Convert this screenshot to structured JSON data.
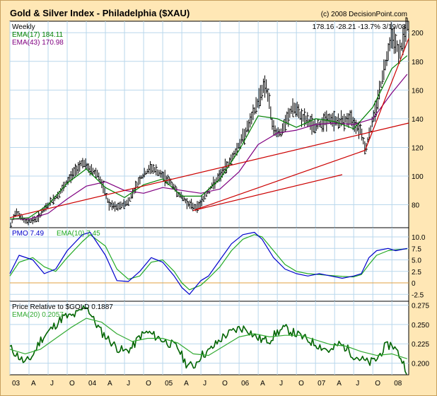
{
  "title": "Gold & Silver Index - Philadelphia ($XAU)",
  "copyright": "(c) 2008 DecisionPoint.com",
  "price_panel": {
    "period_label": "Weekly",
    "ema17_label": "EMA(17) 184.11",
    "ema43_label": "EMA(43) 170.98",
    "stats": "178.16  -28.21  -13.7%  3/19/08",
    "y_ticks": [
      "200",
      "180",
      "160",
      "140",
      "120",
      "100",
      "80"
    ]
  },
  "pmo_panel": {
    "pmo_label": "PMO  7.49",
    "ema_label": "EMA(10)  7.45",
    "y_ticks": [
      "10.0",
      "7.5",
      "5.0",
      "2.5",
      "0",
      "-2.5"
    ]
  },
  "rel_panel": {
    "rel_label": "Price Relative to $GOLD  0.1887",
    "ema_label": "EMA(20) 0.2057",
    "y_ticks": [
      "0.275",
      "0.250",
      "0.225",
      "0.200"
    ]
  },
  "x_ticks": [
    "03",
    "A",
    "J",
    "O",
    "04",
    "A",
    "J",
    "O",
    "05",
    "A",
    "J",
    "O",
    "06",
    "A",
    "J",
    "O",
    "07",
    "A",
    "J",
    "O",
    "08"
  ],
  "colors": {
    "background": "#ffe7b5",
    "grid": "#b9d7ec",
    "price": "#000000",
    "ema_short": "#008000",
    "ema_long": "#800080",
    "trendline": "#cc0000",
    "pmo": "#0000cc",
    "pmo_signal": "#22aa22",
    "zero_line": "#e0a040",
    "relative": "#006400",
    "relative_ema": "#33aa33"
  },
  "chart_data": [
    {
      "type": "bar",
      "title": "Gold & Silver Index - Philadelphia ($XAU)",
      "period": "Weekly",
      "x_range": [
        2003.0,
        2008.22
      ],
      "ylim": [
        64,
        208
      ],
      "series": [
        {
          "name": "EMA(17)",
          "x": [
            2003.0,
            2003.25,
            2003.5,
            2003.75,
            2004.0,
            2004.25,
            2004.5,
            2004.75,
            2005.0,
            2005.25,
            2005.5,
            2005.75,
            2006.0,
            2006.25,
            2006.5,
            2006.75,
            2007.0,
            2007.25,
            2007.5,
            2007.75,
            2008.0,
            2008.2
          ],
          "values": [
            70,
            71,
            80,
            95,
            105,
            92,
            85,
            94,
            98,
            86,
            86,
            98,
            118,
            142,
            140,
            134,
            140,
            138,
            133,
            148,
            175,
            184
          ]
        },
        {
          "name": "EMA(43)",
          "x": [
            2003.0,
            2003.25,
            2003.5,
            2003.75,
            2004.0,
            2004.25,
            2004.5,
            2004.75,
            2005.0,
            2005.25,
            2005.5,
            2005.75,
            2006.0,
            2006.25,
            2006.5,
            2006.75,
            2007.0,
            2007.25,
            2007.5,
            2007.75,
            2008.0,
            2008.2
          ],
          "values": [
            70,
            70,
            74,
            84,
            93,
            96,
            90,
            88,
            92,
            90,
            88,
            91,
            103,
            122,
            130,
            132,
            136,
            137,
            136,
            140,
            158,
            171
          ]
        }
      ],
      "price_anchors": {
        "x": [
          2003.0,
          2003.08,
          2003.2,
          2003.35,
          2003.5,
          2003.65,
          2003.8,
          2003.95,
          2004.05,
          2004.15,
          2004.3,
          2004.4,
          2004.55,
          2004.7,
          2004.85,
          2004.95,
          2005.1,
          2005.2,
          2005.35,
          2005.45,
          2005.6,
          2005.75,
          2005.9,
          2006.0,
          2006.15,
          2006.3,
          2006.35,
          2006.45,
          2006.55,
          2006.7,
          2006.85,
          2007.0,
          2007.15,
          2007.3,
          2007.45,
          2007.6,
          2007.65,
          2007.8,
          2007.9,
          2008.0,
          2008.1,
          2008.2
        ],
        "values": [
          64,
          76,
          68,
          70,
          80,
          88,
          100,
          110,
          104,
          102,
          80,
          78,
          82,
          98,
          106,
          102,
          96,
          88,
          80,
          78,
          90,
          100,
          112,
          122,
          138,
          160,
          165,
          132,
          130,
          148,
          140,
          134,
          140,
          138,
          140,
          132,
          118,
          150,
          175,
          200,
          185,
          205
        ]
      },
      "trendlines": [
        {
          "x": [
            2003.0,
            2008.22
          ],
          "values": [
            71,
            137
          ]
        },
        {
          "x": [
            2005.4,
            2007.35
          ],
          "values": [
            76,
            101
          ]
        },
        {
          "x": [
            2005.4,
            2007.65
          ],
          "values": [
            76,
            118
          ]
        },
        {
          "x": [
            2007.65,
            2008.22
          ],
          "values": [
            118,
            196
          ]
        }
      ]
    },
    {
      "type": "line",
      "title": "PMO",
      "x_range": [
        2003.0,
        2008.22
      ],
      "ylim": [
        -4,
        12
      ],
      "series": [
        {
          "name": "PMO",
          "x": [
            2003.0,
            2003.12,
            2003.3,
            2003.45,
            2003.6,
            2003.75,
            2003.95,
            2004.05,
            2004.25,
            2004.4,
            2004.55,
            2004.7,
            2004.85,
            2005.0,
            2005.15,
            2005.25,
            2005.35,
            2005.5,
            2005.6,
            2005.75,
            2005.9,
            2006.05,
            2006.2,
            2006.3,
            2006.45,
            2006.6,
            2006.75,
            2006.9,
            2007.05,
            2007.2,
            2007.35,
            2007.5,
            2007.6,
            2007.7,
            2007.8,
            2007.95,
            2008.05,
            2008.2
          ],
          "values": [
            2.0,
            6.0,
            5.0,
            2.0,
            3.0,
            7.0,
            10.5,
            11.0,
            6.0,
            0.5,
            0.3,
            2.5,
            5.5,
            4.5,
            1.5,
            -1.0,
            -2.5,
            0.5,
            1.5,
            5.0,
            8.5,
            10.5,
            11.0,
            9.5,
            5.5,
            3.0,
            2.0,
            1.5,
            2.0,
            1.5,
            1.0,
            1.5,
            2.0,
            5.5,
            7.0,
            7.5,
            7.0,
            7.5
          ]
        },
        {
          "name": "EMA(10)",
          "x": [
            2003.0,
            2003.12,
            2003.3,
            2003.45,
            2003.6,
            2003.75,
            2003.95,
            2004.05,
            2004.25,
            2004.4,
            2004.55,
            2004.7,
            2004.85,
            2005.0,
            2005.15,
            2005.25,
            2005.35,
            2005.5,
            2005.6,
            2005.75,
            2005.9,
            2006.05,
            2006.2,
            2006.3,
            2006.45,
            2006.6,
            2006.75,
            2006.9,
            2007.05,
            2007.2,
            2007.35,
            2007.5,
            2007.6,
            2007.7,
            2007.8,
            2007.95,
            2008.05,
            2008.2
          ],
          "values": [
            1.5,
            4.5,
            5.5,
            3.5,
            2.5,
            5.5,
            9.0,
            10.5,
            8.0,
            3.0,
            0.8,
            1.5,
            4.5,
            5.0,
            2.5,
            0.0,
            -1.5,
            -0.5,
            1.0,
            3.5,
            7.0,
            9.5,
            10.5,
            10.0,
            7.0,
            4.0,
            2.5,
            2.0,
            1.8,
            1.6,
            1.4,
            1.3,
            1.8,
            4.0,
            6.0,
            7.0,
            7.2,
            7.4
          ]
        }
      ]
    },
    {
      "type": "line",
      "title": "Price Relative to $GOLD",
      "x_range": [
        2003.0,
        2008.22
      ],
      "ylim": [
        0.185,
        0.28
      ],
      "series": [
        {
          "name": "Price Relative to $GOLD",
          "x": [
            2003.0,
            2003.1,
            2003.2,
            2003.3,
            2003.4,
            2003.5,
            2003.6,
            2003.7,
            2003.8,
            2003.9,
            2004.0,
            2004.1,
            2004.2,
            2004.3,
            2004.4,
            2004.5,
            2004.6,
            2004.7,
            2004.8,
            2004.9,
            2005.0,
            2005.1,
            2005.2,
            2005.3,
            2005.4,
            2005.5,
            2005.6,
            2005.7,
            2005.8,
            2005.9,
            2006.0,
            2006.1,
            2006.2,
            2006.3,
            2006.4,
            2006.5,
            2006.6,
            2006.7,
            2006.8,
            2006.9,
            2007.0,
            2007.1,
            2007.2,
            2007.3,
            2007.4,
            2007.5,
            2007.6,
            2007.7,
            2007.8,
            2007.9,
            2008.0,
            2008.1,
            2008.2
          ],
          "values": [
            0.22,
            0.21,
            0.2,
            0.21,
            0.23,
            0.24,
            0.25,
            0.26,
            0.26,
            0.265,
            0.275,
            0.255,
            0.24,
            0.23,
            0.22,
            0.215,
            0.22,
            0.235,
            0.24,
            0.235,
            0.23,
            0.225,
            0.22,
            0.2,
            0.195,
            0.21,
            0.215,
            0.225,
            0.235,
            0.24,
            0.245,
            0.245,
            0.235,
            0.23,
            0.23,
            0.24,
            0.245,
            0.24,
            0.235,
            0.23,
            0.225,
            0.22,
            0.215,
            0.225,
            0.22,
            0.21,
            0.205,
            0.2,
            0.205,
            0.22,
            0.225,
            0.21,
            0.19
          ]
        },
        {
          "name": "EMA(20)",
          "x": [
            2003.0,
            2003.2,
            2003.4,
            2003.6,
            2003.8,
            2004.0,
            2004.2,
            2004.4,
            2004.6,
            2004.8,
            2005.0,
            2005.2,
            2005.4,
            2005.6,
            2005.8,
            2006.0,
            2006.2,
            2006.4,
            2006.6,
            2006.8,
            2007.0,
            2007.2,
            2007.4,
            2007.6,
            2007.8,
            2008.0,
            2008.2
          ],
          "values": [
            0.218,
            0.212,
            0.218,
            0.232,
            0.246,
            0.258,
            0.253,
            0.238,
            0.228,
            0.232,
            0.232,
            0.226,
            0.212,
            0.21,
            0.222,
            0.234,
            0.238,
            0.234,
            0.236,
            0.236,
            0.23,
            0.224,
            0.222,
            0.215,
            0.21,
            0.212,
            0.2057
          ]
        }
      ]
    }
  ]
}
